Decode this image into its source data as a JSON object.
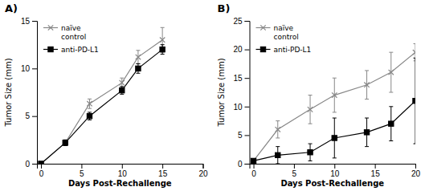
{
  "chart_data": [
    {
      "type": "line",
      "title": "A)",
      "x_label": "Days Post-Rechallenge",
      "y_label": "Tumor Size (mm)",
      "xlim": [
        -0.5,
        20
      ],
      "ylim": [
        0,
        15
      ],
      "xticks": [
        0,
        5,
        10,
        15,
        20
      ],
      "yticks": [
        0,
        5,
        10,
        15
      ],
      "legend": "upper left",
      "x": [
        0,
        3,
        6,
        10,
        12,
        15
      ],
      "series": [
        {
          "name": "naïve\ncontrol",
          "color": "#888888",
          "marker": "x",
          "values": [
            0,
            2.2,
            6.3,
            8.5,
            11.2,
            13.0
          ],
          "errors": [
            0,
            0.3,
            0.5,
            0.5,
            0.7,
            1.3
          ]
        },
        {
          "name": "anti-PD-L1",
          "color": "#000000",
          "marker": "square",
          "values": [
            0,
            2.2,
            5.0,
            7.7,
            10.0,
            12.0
          ],
          "errors": [
            0,
            0.3,
            0.4,
            0.4,
            0.5,
            0.5
          ]
        }
      ]
    },
    {
      "type": "line",
      "title": "B)",
      "x_label": "Days Post-Rechallenge",
      "y_label": "Tumor Size (mm)",
      "xlim": [
        -0.5,
        20
      ],
      "ylim": [
        0,
        25
      ],
      "xticks": [
        0,
        5,
        10,
        15,
        20
      ],
      "yticks": [
        0,
        5,
        10,
        15,
        20,
        25
      ],
      "legend": "upper left",
      "x": [
        0,
        3,
        7,
        10,
        14,
        17,
        20
      ],
      "series": [
        {
          "name": "naïve\ncontrol",
          "color": "#888888",
          "marker": "x",
          "values": [
            0.5,
            6.0,
            9.5,
            12.0,
            13.8,
            16.0,
            19.5
          ],
          "errors": [
            0.3,
            1.5,
            2.5,
            3.0,
            2.5,
            3.5,
            1.5
          ]
        },
        {
          "name": "anti-PD-L1",
          "color": "#000000",
          "marker": "square",
          "values": [
            0.5,
            1.5,
            2.0,
            4.5,
            5.5,
            7.0,
            11.0
          ],
          "errors": [
            0.3,
            1.5,
            1.5,
            3.5,
            2.5,
            3.0,
            7.5
          ]
        }
      ]
    }
  ]
}
